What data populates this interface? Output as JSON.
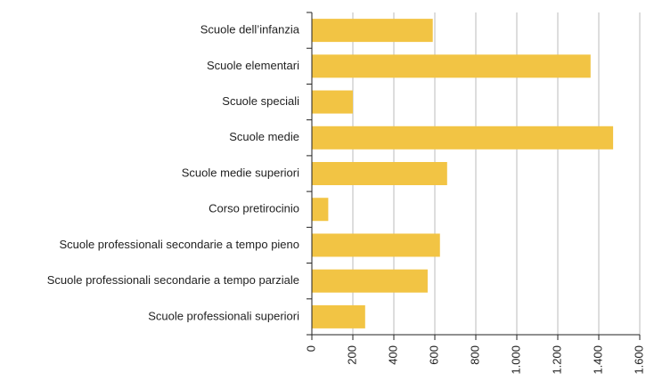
{
  "chart_data": {
    "type": "barh",
    "categories": [
      "Scuole dell’infanzia",
      "Scuole elementari",
      "Scuole speciali",
      "Scuole medie",
      "Scuole medie superiori",
      "Corso pretirocinio",
      "Scuole professionali secondarie a tempo pieno",
      "Scuole professionali secondarie a tempo parziale",
      "Scuole professionali superiori"
    ],
    "values": [
      590,
      1360,
      200,
      1470,
      660,
      80,
      625,
      565,
      260
    ],
    "color": "#f2c444",
    "xlim": [
      0,
      1600
    ],
    "xticks": [
      0,
      200,
      400,
      600,
      800,
      {
        "value": 1000,
        "label": "1.000"
      },
      {
        "value": 1200,
        "label": "1.200"
      },
      {
        "value": 1400,
        "label": "1.400"
      },
      {
        "value": 1600,
        "label": "1.600"
      }
    ],
    "grid": true
  }
}
